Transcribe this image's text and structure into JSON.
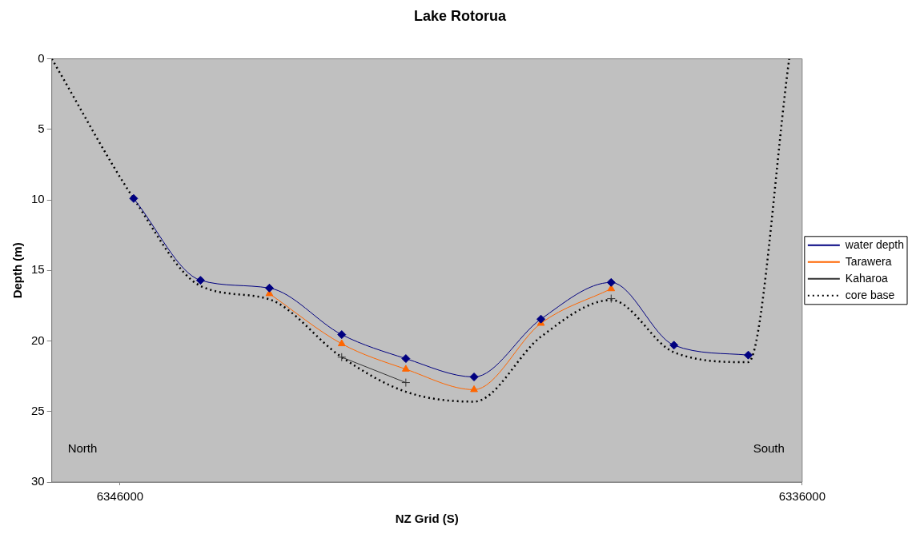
{
  "chart_data": {
    "type": "line",
    "title": "Lake Rotorua",
    "xlabel": "NZ Grid (S)",
    "ylabel": "Depth (m)",
    "xlim": [
      6347000,
      6336000
    ],
    "xticks": [
      6346000,
      6336000
    ],
    "ylim": [
      30,
      0
    ],
    "yticks": [
      0,
      5,
      10,
      15,
      20,
      25,
      30
    ],
    "grid": false,
    "legend": "right",
    "annotations": [
      "North",
      "South"
    ],
    "series": [
      {
        "name": "water depth",
        "color": "#000080",
        "marker": "diamond",
        "line_style": "solid",
        "x": [
          6345800,
          6344820,
          6343810,
          6342750,
          6341810,
          6340810,
          6339830,
          6338800,
          6337880,
          6336790
        ],
        "values": [
          9.9,
          15.7,
          16.25,
          19.55,
          21.25,
          22.55,
          18.45,
          15.85,
          20.3,
          21.0
        ]
      },
      {
        "name": "Tarawera",
        "color": "#ff6600",
        "marker": "triangle",
        "line_style": "solid",
        "x": [
          6343810,
          6342750,
          6341810,
          6340810,
          6339830,
          6338800
        ],
        "values": [
          16.65,
          20.2,
          22.0,
          23.45,
          18.75,
          16.3
        ]
      },
      {
        "name": "Kaharoa",
        "color": "#333333",
        "marker": "cross",
        "line_style": "solid",
        "x": [
          6342750,
          6341810,
          6340810,
          6338800
        ],
        "values": [
          21.15,
          22.95,
          null,
          17.0
        ]
      },
      {
        "name": "core base",
        "color": "#000000",
        "marker": "none",
        "line_style": "dotted",
        "x": [
          6347000,
          6345800,
          6344820,
          6343810,
          6342750,
          6341810,
          6340810,
          6339830,
          6338800,
          6337880,
          6336790,
          6336190
        ],
        "values": [
          0,
          9.9,
          16.1,
          17.05,
          21.15,
          23.6,
          24.3,
          19.7,
          17.1,
          20.8,
          21.5,
          0
        ]
      }
    ]
  }
}
